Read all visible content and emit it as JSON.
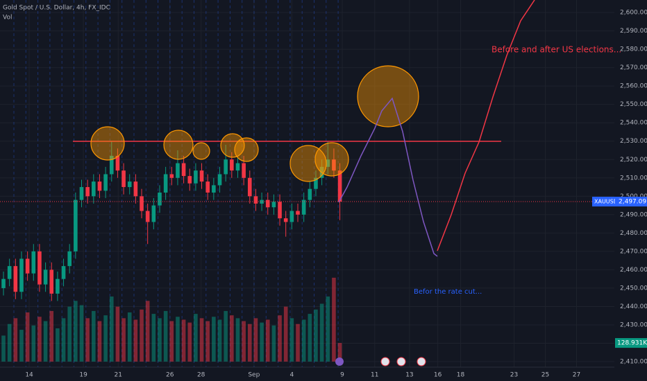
{
  "chart_data": {
    "type": "candlestick",
    "title": "Gold Spot / U.S. Dollar, 4h, FX_IDC",
    "volume_title": "Vol",
    "annotations": [
      "Before and after US elections...",
      "Befor  the rate cut..."
    ],
    "last_labels": {
      "symbol": "XAUUSD",
      "price": "2,497.09",
      "volume": "128.931K"
    },
    "up_color": "#089981",
    "down_color": "#f23645",
    "open": [
      2450,
      2455,
      2462,
      2448,
      2466,
      2458,
      2470,
      2452,
      2460,
      2447,
      2455,
      2462,
      2470,
      2498,
      2505,
      2500,
      2508,
      2503,
      2512,
      2522,
      2514,
      2505,
      2508,
      2500,
      2492,
      2486,
      2495,
      2502,
      2512,
      2510,
      2518,
      2511,
      2507,
      2514,
      2508,
      2502,
      2506,
      2512,
      2520,
      2514,
      2518,
      2510,
      2500,
      2496,
      2498,
      2494,
      2497,
      2488,
      2486,
      2492,
      2490,
      2498,
      2504,
      2510,
      2516,
      2520,
      2514
    ],
    "high": [
      2459,
      2466,
      2466,
      2470,
      2470,
      2474,
      2474,
      2464,
      2464,
      2459,
      2466,
      2474,
      2502,
      2509,
      2509,
      2512,
      2512,
      2516,
      2530,
      2526,
      2518,
      2512,
      2512,
      2504,
      2496,
      2499,
      2506,
      2516,
      2516,
      2525,
      2522,
      2515,
      2518,
      2518,
      2512,
      2510,
      2516,
      2528,
      2524,
      2522,
      2522,
      2514,
      2504,
      2502,
      2502,
      2501,
      2501,
      2492,
      2496,
      2496,
      2502,
      2508,
      2514,
      2520,
      2530,
      2526,
      2518
    ],
    "low": [
      2446,
      2451,
      2444,
      2444,
      2454,
      2454,
      2448,
      2448,
      2443,
      2443,
      2451,
      2458,
      2466,
      2494,
      2496,
      2496,
      2499,
      2499,
      2508,
      2510,
      2501,
      2501,
      2496,
      2488,
      2474,
      2482,
      2491,
      2498,
      2506,
      2506,
      2507,
      2503,
      2503,
      2504,
      2498,
      2498,
      2502,
      2508,
      2510,
      2510,
      2506,
      2496,
      2492,
      2492,
      2490,
      2490,
      2484,
      2478,
      2482,
      2486,
      2486,
      2494,
      2500,
      2506,
      2512,
      2510,
      2487
    ],
    "close": [
      2455,
      2462,
      2448,
      2466,
      2458,
      2470,
      2452,
      2460,
      2447,
      2455,
      2462,
      2470,
      2498,
      2505,
      2500,
      2508,
      2503,
      2512,
      2522,
      2514,
      2505,
      2508,
      2500,
      2492,
      2486,
      2495,
      2502,
      2512,
      2510,
      2518,
      2511,
      2507,
      2514,
      2508,
      2502,
      2506,
      2512,
      2520,
      2514,
      2518,
      2510,
      2500,
      2496,
      2498,
      2494,
      2497,
      2488,
      2486,
      2492,
      2490,
      2498,
      2504,
      2510,
      2516,
      2520,
      2514,
      2497.09
    ],
    "volume": [
      180,
      260,
      300,
      220,
      340,
      250,
      310,
      280,
      350,
      230,
      300,
      380,
      420,
      390,
      300,
      350,
      280,
      320,
      450,
      380,
      300,
      340,
      290,
      360,
      420,
      330,
      300,
      350,
      280,
      310,
      290,
      270,
      330,
      300,
      280,
      310,
      290,
      350,
      320,
      300,
      280,
      260,
      300,
      270,
      290,
      250,
      320,
      380,
      300,
      260,
      290,
      330,
      360,
      400,
      450,
      580,
      128.931
    ],
    "xlim": [
      -0.58,
      101.7
    ],
    "xticks": [
      {
        "value": 4.28,
        "label": "14"
      },
      {
        "value": 13.3,
        "label": "19"
      },
      {
        "value": 19.1,
        "label": "21"
      },
      {
        "value": 27.7,
        "label": "26"
      },
      {
        "value": 32.9,
        "label": "28"
      },
      {
        "value": 41.7,
        "label": "Sep"
      },
      {
        "value": 48.0,
        "label": "4"
      },
      {
        "value": 56.4,
        "label": "9"
      },
      {
        "value": 61.8,
        "label": "11"
      },
      {
        "value": 67.6,
        "label": "13"
      },
      {
        "value": 72.3,
        "label": "16"
      },
      {
        "value": 76.1,
        "label": "18"
      },
      {
        "value": 85.0,
        "label": "23"
      },
      {
        "value": 90.2,
        "label": "25"
      },
      {
        "value": 95.4,
        "label": "27"
      }
    ],
    "ylim": [
      2407,
      2606.8
    ],
    "yticks": [
      {
        "value": 2410,
        "label": "2,410.00"
      },
      {
        "value": 2420,
        "label": "2,420.00"
      },
      {
        "value": 2430,
        "label": "2,430.00"
      },
      {
        "value": 2440,
        "label": "2,440.00"
      },
      {
        "value": 2450,
        "label": "2,450.00"
      },
      {
        "value": 2460,
        "label": "2,460.00"
      },
      {
        "value": 2470,
        "label": "2,470.00"
      },
      {
        "value": 2480,
        "label": "2,480.00"
      },
      {
        "value": 2490,
        "label": "2,490.00"
      },
      {
        "value": 2500,
        "label": "2,500.00"
      },
      {
        "value": 2510,
        "label": "2,510.00"
      },
      {
        "value": 2520,
        "label": "2,520.00"
      },
      {
        "value": 2530,
        "label": "2,530.00"
      },
      {
        "value": 2540,
        "label": "2,540.00"
      },
      {
        "value": 2550,
        "label": "2,550.00"
      },
      {
        "value": 2560,
        "label": "2,560.00"
      },
      {
        "value": 2570,
        "label": "2,570.00"
      },
      {
        "value": 2580,
        "label": "2,580.00"
      },
      {
        "value": 2590,
        "label": "2,590.00"
      },
      {
        "value": 2600,
        "label": "2,600.00"
      }
    ],
    "volume_lim": [
      0,
      2500
    ],
    "grid": true
  }
}
